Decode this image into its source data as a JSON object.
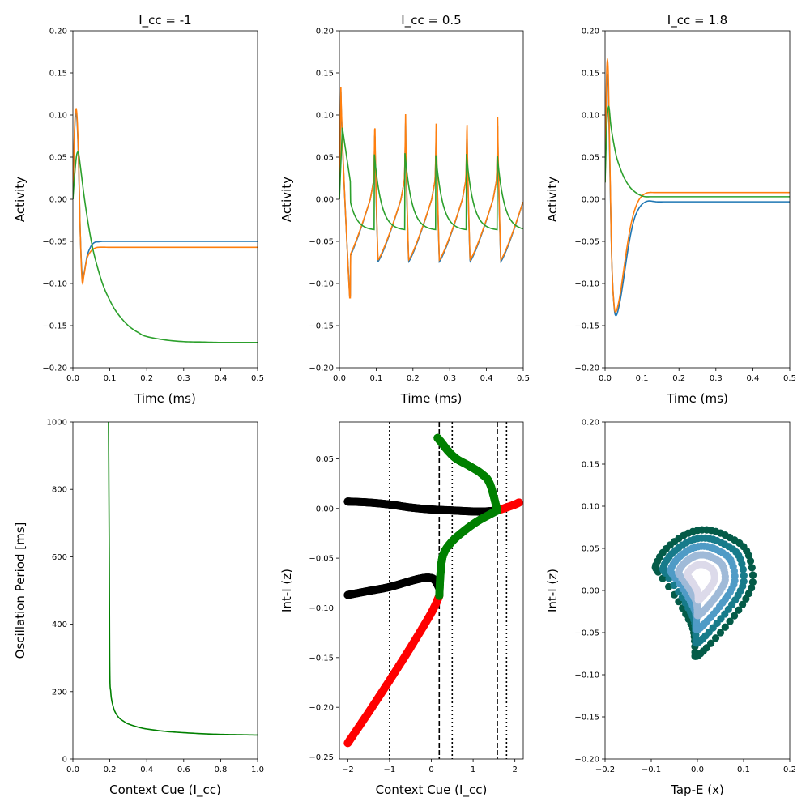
{
  "colors": {
    "c1": "#1f77b4",
    "c2": "#ff7f0e",
    "c3": "#2ca02c",
    "green": "#008000",
    "red": "#ff0000",
    "black": "#000000",
    "cont": [
      "#dcdaea",
      "#9fbad8",
      "#4f9bc6",
      "#177b8a",
      "#045b48"
    ]
  },
  "chart_data": [
    {
      "type": "line",
      "title": "I_cc = -1",
      "xlabel": "Time (ms)",
      "ylabel": "Activity",
      "xlim": [
        0,
        0.5
      ],
      "ylim": [
        -0.2,
        0.2
      ],
      "xticks": [
        "0.0",
        "0.1",
        "0.2",
        "0.3",
        "0.4",
        "0.5"
      ],
      "yticks": [
        "−0.20",
        "−0.15",
        "−0.10",
        "−0.05",
        "0.00",
        "0.05",
        "0.10",
        "0.15",
        "0.20"
      ],
      "series": [
        {
          "color": "#1f77b4",
          "x": [
            0,
            0.005,
            0.01,
            0.015,
            0.02,
            0.025,
            0.03,
            0.035,
            0.04,
            0.05,
            0.06,
            0.07,
            0.08,
            0.1,
            0.15,
            0.5
          ],
          "y": [
            0.0,
            0.085,
            0.1,
            0.05,
            -0.04,
            -0.09,
            -0.088,
            -0.076,
            -0.065,
            -0.055,
            -0.051,
            -0.0505,
            -0.05,
            -0.05,
            -0.05,
            -0.05
          ]
        },
        {
          "color": "#ff7f0e",
          "x": [
            0,
            0.005,
            0.01,
            0.015,
            0.02,
            0.025,
            0.03,
            0.035,
            0.04,
            0.05,
            0.06,
            0.07,
            0.1,
            0.15,
            0.5
          ],
          "y": [
            0.005,
            0.09,
            0.105,
            0.055,
            -0.04,
            -0.097,
            -0.09,
            -0.077,
            -0.068,
            -0.061,
            -0.058,
            -0.057,
            -0.057,
            -0.057,
            -0.057
          ]
        },
        {
          "color": "#2ca02c",
          "x": [
            0,
            0.005,
            0.01,
            0.015,
            0.02,
            0.03,
            0.04,
            0.05,
            0.06,
            0.08,
            0.1,
            0.12,
            0.15,
            0.18,
            0.2,
            0.25,
            0.3,
            0.35,
            0.4,
            0.45,
            0.5
          ],
          "y": [
            0.0,
            0.03,
            0.052,
            0.055,
            0.04,
            0.005,
            -0.025,
            -0.05,
            -0.07,
            -0.1,
            -0.12,
            -0.135,
            -0.15,
            -0.159,
            -0.163,
            -0.167,
            -0.169,
            -0.1695,
            -0.17,
            -0.17,
            -0.17
          ]
        }
      ]
    },
    {
      "type": "line",
      "title": "I_cc = 0.5",
      "xlabel": "Time (ms)",
      "ylabel": "Activity",
      "xlim": [
        0,
        0.5
      ],
      "ylim": [
        -0.2,
        0.2
      ],
      "xticks": [
        "0.0",
        "0.1",
        "0.2",
        "0.3",
        "0.4",
        "0.5"
      ],
      "yticks": [
        "−0.20",
        "−0.15",
        "−0.10",
        "−0.05",
        "0.00",
        "0.05",
        "0.10",
        "0.15",
        "0.20"
      ],
      "oscillation": {
        "period": 0.0835,
        "first_spike": 0.0965,
        "spike_peak_orange": 0.101,
        "spike_peak_blue": 0.09,
        "trough_orange": -0.072,
        "trough_blue": -0.074,
        "green_peak": 0.055,
        "green_trough": -0.036,
        "initial_peak_orange": 0.133,
        "initial_trough_orange": -0.117
      },
      "series": [
        {
          "color": "#1f77b4",
          "name": ""
        },
        {
          "color": "#ff7f0e",
          "name": ""
        },
        {
          "color": "#2ca02c",
          "name": ""
        }
      ]
    },
    {
      "type": "line",
      "title": "I_cc = 1.8",
      "xlabel": "Time (ms)",
      "ylabel": "Activity",
      "xlim": [
        0,
        0.5
      ],
      "ylim": [
        -0.2,
        0.2
      ],
      "xticks": [
        "0.0",
        "0.1",
        "0.2",
        "0.3",
        "0.4",
        "0.5"
      ],
      "yticks": [
        "−0.20",
        "−0.15",
        "−0.10",
        "−0.05",
        "0.00",
        "0.05",
        "0.10",
        "0.15",
        "0.20"
      ],
      "series": [
        {
          "color": "#1f77b4",
          "x": [
            0,
            0.004,
            0.008,
            0.012,
            0.018,
            0.024,
            0.03,
            0.04,
            0.05,
            0.06,
            0.07,
            0.08,
            0.09,
            0.1,
            0.11,
            0.12,
            0.14,
            0.16,
            0.2,
            0.5
          ],
          "y": [
            0.02,
            0.13,
            0.14,
            0.06,
            -0.07,
            -0.125,
            -0.138,
            -0.122,
            -0.095,
            -0.065,
            -0.04,
            -0.022,
            -0.012,
            -0.006,
            -0.003,
            -0.002,
            -0.003,
            -0.003,
            -0.003,
            -0.003
          ]
        },
        {
          "color": "#ff7f0e",
          "x": [
            0,
            0.004,
            0.008,
            0.012,
            0.018,
            0.024,
            0.03,
            0.04,
            0.05,
            0.06,
            0.07,
            0.08,
            0.09,
            0.1,
            0.11,
            0.12,
            0.14,
            0.2,
            0.5
          ],
          "y": [
            0.02,
            0.145,
            0.158,
            0.07,
            -0.07,
            -0.124,
            -0.133,
            -0.115,
            -0.085,
            -0.055,
            -0.03,
            -0.013,
            -0.002,
            0.004,
            0.007,
            0.008,
            0.008,
            0.008,
            0.008
          ]
        },
        {
          "color": "#2ca02c",
          "x": [
            0,
            0.005,
            0.01,
            0.015,
            0.02,
            0.03,
            0.04,
            0.05,
            0.06,
            0.07,
            0.08,
            0.09,
            0.1,
            0.11,
            0.12,
            0.15,
            0.5
          ],
          "y": [
            0.02,
            0.09,
            0.11,
            0.09,
            0.075,
            0.052,
            0.038,
            0.027,
            0.019,
            0.013,
            0.009,
            0.006,
            0.004,
            0.003,
            0.003,
            0.003,
            0.003
          ]
        }
      ]
    },
    {
      "type": "line",
      "xlabel": "Context Cue (I_cc)",
      "ylabel": "Oscillation Period [ms]",
      "xlim": [
        0,
        1
      ],
      "ylim": [
        0,
        1000
      ],
      "xticks": [
        "0.0",
        "0.2",
        "0.4",
        "0.6",
        "0.8",
        "1.0"
      ],
      "yticks": [
        "0",
        "200",
        "400",
        "600",
        "800",
        "1000"
      ],
      "series": [
        {
          "color": "#008000",
          "x": [
            0.193,
            0.195,
            0.197,
            0.2,
            0.205,
            0.21,
            0.22,
            0.23,
            0.25,
            0.28,
            0.3,
            0.35,
            0.4,
            0.5,
            0.6,
            0.7,
            0.8,
            0.9,
            1.0
          ],
          "y": [
            1000,
            800,
            600,
            260,
            200,
            175,
            152,
            138,
            122,
            110,
            104,
            95,
            89,
            82,
            78,
            75,
            73,
            72,
            71
          ]
        }
      ]
    },
    {
      "type": "scatter",
      "xlabel": "Context Cue (I_cc)",
      "ylabel": "Int-I (z)",
      "xlim": [
        -2.2,
        2.2
      ],
      "ylim": [
        -0.252,
        0.087
      ],
      "xticks": [
        "−2",
        "−1",
        "0",
        "1",
        "2"
      ],
      "yticks": [
        "−0.25",
        "−0.20",
        "−0.15",
        "−0.10",
        "−0.05",
        "0.00",
        "0.05"
      ],
      "dotted_lines_x": [
        -1,
        0.5,
        1.8
      ],
      "dashed_lines_x": [
        0.19,
        1.58
      ],
      "branches": [
        {
          "color": "#000000",
          "label": "",
          "points": [
            [
              -2,
              0.007
            ],
            [
              -1.5,
              0.006
            ],
            [
              -1,
              0.004
            ],
            [
              -0.5,
              0.001
            ],
            [
              0,
              -0.001
            ],
            [
              0.5,
              -0.002
            ],
            [
              1,
              -0.003
            ],
            [
              1.3,
              -0.003
            ],
            [
              1.58,
              -0.002
            ]
          ]
        },
        {
          "color": "#000000",
          "label": "",
          "points": [
            [
              -2,
              -0.087
            ],
            [
              -1.5,
              -0.083
            ],
            [
              -1,
              -0.079
            ],
            [
              -0.5,
              -0.073
            ],
            [
              -0.2,
              -0.07
            ],
            [
              0,
              -0.07
            ],
            [
              0.1,
              -0.073
            ],
            [
              0.19,
              -0.08
            ]
          ]
        },
        {
          "color": "#ff0000",
          "label": "",
          "points": [
            [
              -2,
              -0.236
            ],
            [
              -1.5,
              -0.205
            ],
            [
              -1,
              -0.173
            ],
            [
              -0.5,
              -0.14
            ],
            [
              0,
              -0.105
            ],
            [
              0.19,
              -0.088
            ]
          ]
        },
        {
          "color": "#ff0000",
          "label": "",
          "points": [
            [
              1.58,
              -0.002
            ],
            [
              1.8,
              0.001
            ],
            [
              2.0,
              0.004
            ],
            [
              2.1,
              0.006
            ]
          ]
        },
        {
          "color": "#008000",
          "label": "",
          "points": [
            [
              0.19,
              -0.088
            ],
            [
              0.23,
              -0.06
            ],
            [
              0.3,
              -0.045
            ],
            [
              0.5,
              -0.033
            ],
            [
              0.8,
              -0.022
            ],
            [
              1.1,
              -0.013
            ],
            [
              1.4,
              -0.006
            ],
            [
              1.58,
              -0.002
            ]
          ]
        },
        {
          "color": "#008000",
          "label": "",
          "points": [
            [
              0.15,
              0.071
            ],
            [
              0.25,
              0.066
            ],
            [
              0.4,
              0.058
            ],
            [
              0.6,
              0.05
            ],
            [
              0.9,
              0.043
            ],
            [
              1.2,
              0.035
            ],
            [
              1.4,
              0.025
            ],
            [
              1.58,
              -0.002
            ]
          ]
        }
      ]
    },
    {
      "type": "scatter",
      "xlabel": "Tap-E (x)",
      "ylabel": "Int-I (z)",
      "xlim": [
        -0.2,
        0.2
      ],
      "ylim": [
        -0.2,
        0.2
      ],
      "xticks": [
        "−0.2",
        "−0.1",
        "0.0",
        "0.1",
        "0.2"
      ],
      "yticks": [
        "−0.20",
        "−0.15",
        "−0.10",
        "−0.05",
        "0.00",
        "0.05",
        "0.10",
        "0.15",
        "0.20"
      ],
      "limit_cycles": [
        {
          "color": "#dcdaea",
          "scale": 0.28
        },
        {
          "color": "#9fbad8",
          "scale": 0.48
        },
        {
          "color": "#4f9bc6",
          "scale": 0.66
        },
        {
          "color": "#177b8a",
          "scale": 0.83
        },
        {
          "color": "#045b48",
          "scale": 1.0
        }
      ],
      "cycle_shape": [
        [
          -0.005,
          -0.078
        ],
        [
          -0.006,
          -0.06
        ],
        [
          -0.01,
          -0.045
        ],
        [
          -0.025,
          -0.028
        ],
        [
          -0.05,
          -0.005
        ],
        [
          -0.085,
          0.022
        ],
        [
          -0.09,
          0.03
        ],
        [
          -0.075,
          0.045
        ],
        [
          -0.05,
          0.058
        ],
        [
          -0.02,
          0.068
        ],
        [
          0.01,
          0.072
        ],
        [
          0.04,
          0.07
        ],
        [
          0.07,
          0.063
        ],
        [
          0.1,
          0.052
        ],
        [
          0.115,
          0.035
        ],
        [
          0.12,
          0.01
        ],
        [
          0.105,
          -0.01
        ],
        [
          0.08,
          -0.03
        ],
        [
          0.05,
          -0.05
        ],
        [
          0.02,
          -0.068
        ],
        [
          0.002,
          -0.077
        ]
      ],
      "cycle_center": [
        0.005,
        0.015
      ]
    }
  ]
}
